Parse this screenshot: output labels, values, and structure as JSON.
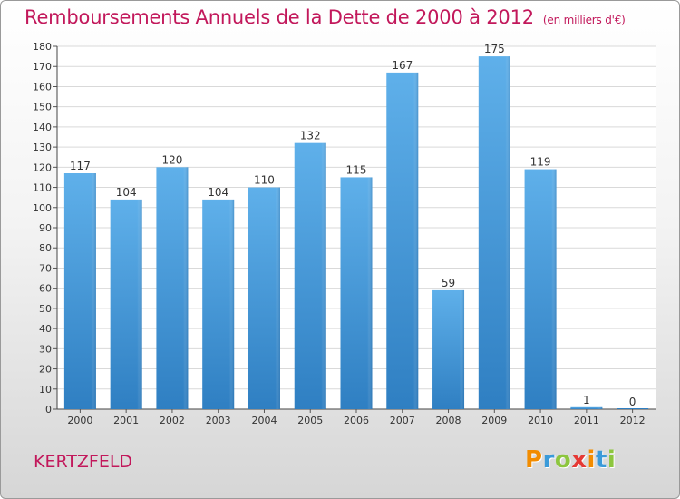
{
  "title": {
    "main": "Remboursements Annuels de la Dette de 2000 à 2012",
    "unit": "(en milliers d'€)"
  },
  "commune": "KERTZFELD",
  "logo": {
    "text": "Proxiti",
    "colors": [
      "#f28c00",
      "#3a9ad9",
      "#8dc63f",
      "#e53935",
      "#f28c00",
      "#3a9ad9",
      "#8dc63f"
    ]
  },
  "colors": {
    "title": "#c2185b",
    "bar_light": "#5fb0ea",
    "bar_dark": "#2f7fc2"
  },
  "chart_data": {
    "type": "bar",
    "categories": [
      "2000",
      "2001",
      "2002",
      "2003",
      "2004",
      "2005",
      "2006",
      "2007",
      "2008",
      "2009",
      "2010",
      "2011",
      "2012"
    ],
    "values": [
      117,
      104,
      120,
      104,
      110,
      132,
      115,
      167,
      59,
      175,
      119,
      1,
      0
    ],
    "ylim": [
      0,
      180
    ],
    "yticks": [
      0,
      10,
      20,
      30,
      40,
      50,
      60,
      70,
      80,
      90,
      100,
      110,
      120,
      130,
      140,
      150,
      160,
      170,
      180
    ],
    "grid": true,
    "legend": "none"
  }
}
